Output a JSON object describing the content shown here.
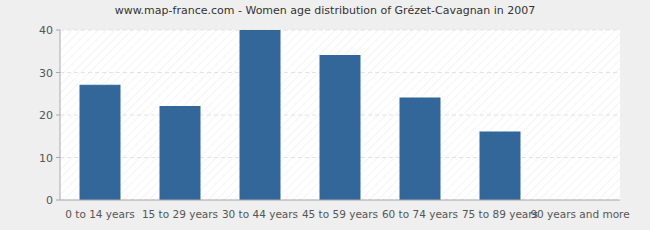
{
  "chart_data": {
    "type": "bar",
    "title": "www.map-france.com - Women age distribution of Grézet-Cavagnan in 2007",
    "categories": [
      "0 to 14 years",
      "15 to 29 years",
      "30 to 44 years",
      "45 to 59 years",
      "60 to 74 years",
      "75 to 89 years",
      "90 years and more"
    ],
    "values": [
      27,
      22,
      40,
      34,
      24,
      16,
      0
    ],
    "color": "#336699",
    "ylim": [
      0,
      40
    ],
    "yticks": [
      0,
      10,
      20,
      30,
      40
    ],
    "grid": true
  }
}
